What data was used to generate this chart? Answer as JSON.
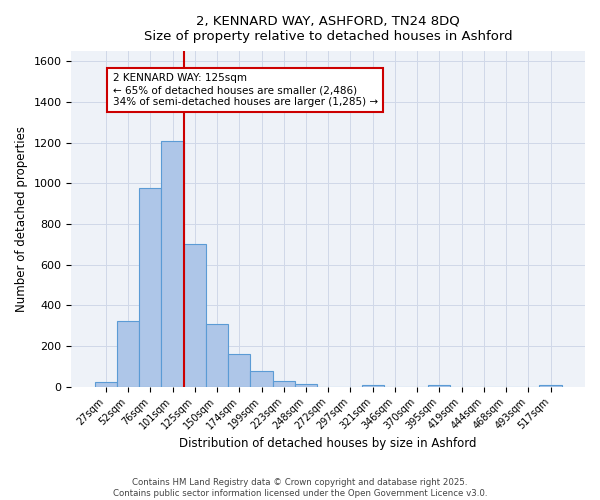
{
  "title_line1": "2, KENNARD WAY, ASHFORD, TN24 8DQ",
  "title_line2": "Size of property relative to detached houses in Ashford",
  "xlabel": "Distribution of detached houses by size in Ashford",
  "ylabel": "Number of detached properties",
  "footer_line1": "Contains HM Land Registry data © Crown copyright and database right 2025.",
  "footer_line2": "Contains public sector information licensed under the Open Government Licence v3.0.",
  "categories": [
    "27sqm",
    "52sqm",
    "76sqm",
    "101sqm",
    "125sqm",
    "150sqm",
    "174sqm",
    "199sqm",
    "223sqm",
    "248sqm",
    "272sqm",
    "297sqm",
    "321sqm",
    "346sqm",
    "370sqm",
    "395sqm",
    "419sqm",
    "444sqm",
    "468sqm",
    "493sqm",
    "517sqm"
  ],
  "values": [
    25,
    325,
    975,
    1210,
    700,
    310,
    160,
    75,
    30,
    15,
    0,
    0,
    10,
    0,
    0,
    10,
    0,
    0,
    0,
    0,
    10
  ],
  "bar_color": "#aec6e8",
  "bar_edge_color": "#5b9bd5",
  "grid_color": "#d0d8e8",
  "background_color": "#eef2f8",
  "vline_x_index": 4,
  "vline_color": "#cc0000",
  "annotation_text": "2 KENNARD WAY: 125sqm\n← 65% of detached houses are smaller (2,486)\n34% of semi-detached houses are larger (1,285) →",
  "annotation_box_color": "#ffffff",
  "annotation_box_edge": "#cc0000",
  "ylim": [
    0,
    1650
  ],
  "yticks": [
    0,
    200,
    400,
    600,
    800,
    1000,
    1200,
    1400,
    1600
  ]
}
